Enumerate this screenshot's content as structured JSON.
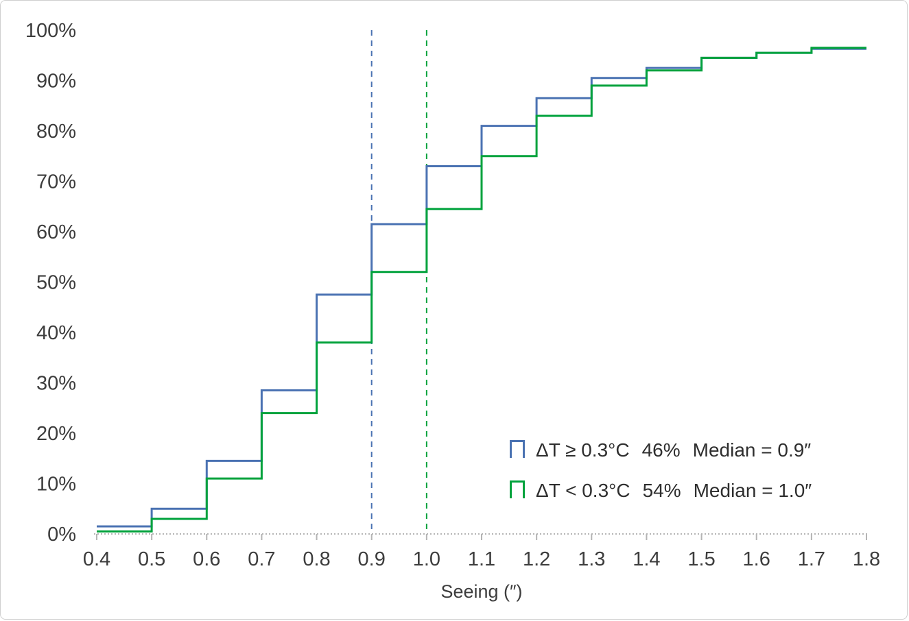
{
  "chart_data": {
    "type": "line",
    "subtype": "cumulative-step-histogram",
    "title": "",
    "xlabel": "Seeing (″)",
    "ylabel": "",
    "xlim": [
      0.4,
      1.8
    ],
    "ylim": [
      0,
      100
    ],
    "x_ticks": [
      0.4,
      0.5,
      0.6,
      0.7,
      0.8,
      0.9,
      1.0,
      1.1,
      1.2,
      1.3,
      1.4,
      1.5,
      1.6,
      1.7,
      1.8
    ],
    "y_ticks": [
      0,
      10,
      20,
      30,
      40,
      50,
      60,
      70,
      80,
      90,
      100
    ],
    "grid": false,
    "legend_position": "lower right",
    "axis_color": "#b5b5b5",
    "bin_edges": [
      0.4,
      0.5,
      0.6,
      0.7,
      0.8,
      0.9,
      1.0,
      1.1,
      1.2,
      1.3,
      1.4,
      1.5,
      1.6,
      1.7,
      1.8
    ],
    "series": [
      {
        "name": "ΔT ≥ 0.3°C",
        "percent": "46%",
        "median_label": "Median = 0.9″",
        "median": 0.9,
        "color": "#4a72b2",
        "values": [
          1.5,
          5,
          14.5,
          28.5,
          47.5,
          61.5,
          73,
          81,
          86.5,
          90.5,
          92.5,
          94.5,
          95.5,
          96.3
        ]
      },
      {
        "name": "ΔT < 0.3°C",
        "percent": "54%",
        "median_label": "Median = 1.0″",
        "median": 1.0,
        "color": "#00a23c",
        "values": [
          0.5,
          3,
          11,
          24,
          38,
          52,
          64.5,
          75,
          83,
          89,
          92,
          94.5,
          95.5,
          96.5
        ]
      }
    ]
  }
}
